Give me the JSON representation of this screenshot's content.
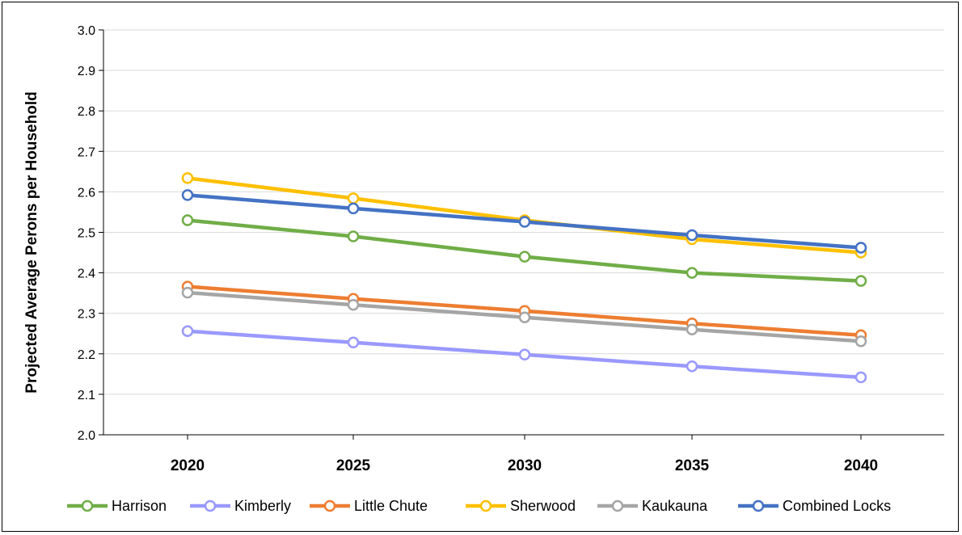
{
  "chart_data": {
    "type": "line",
    "title": "",
    "xlabel": "",
    "ylabel": "Projected Average Perons per Household",
    "x": [
      "2020",
      "2025",
      "2030",
      "2035",
      "2040"
    ],
    "ylim": [
      2.0,
      3.0
    ],
    "yticks": [
      "2.0",
      "2.1",
      "2.2",
      "2.3",
      "2.4",
      "2.5",
      "2.6",
      "2.7",
      "2.8",
      "2.9",
      "3.0"
    ],
    "grid": "horizontal",
    "legend_position": "bottom",
    "series": [
      {
        "name": "Harrison",
        "color": "#70AD47",
        "values": [
          2.53,
          2.49,
          2.44,
          2.4,
          2.38
        ]
      },
      {
        "name": "Kimberly",
        "color": "#9999FF",
        "values": [
          2.256,
          2.228,
          2.198,
          2.169,
          2.142
        ]
      },
      {
        "name": "Little Chute",
        "color": "#ED7D31",
        "values": [
          2.366,
          2.336,
          2.306,
          2.275,
          2.246
        ]
      },
      {
        "name": "Sherwood",
        "color": "#FFC000",
        "values": [
          2.634,
          2.584,
          2.53,
          2.483,
          2.45
        ]
      },
      {
        "name": "Kaukauna",
        "color": "#A5A5A5",
        "values": [
          2.351,
          2.321,
          2.29,
          2.26,
          2.231
        ]
      },
      {
        "name": "Combined Locks",
        "color": "#4472C4",
        "values": [
          2.592,
          2.559,
          2.526,
          2.493,
          2.462
        ]
      }
    ]
  }
}
